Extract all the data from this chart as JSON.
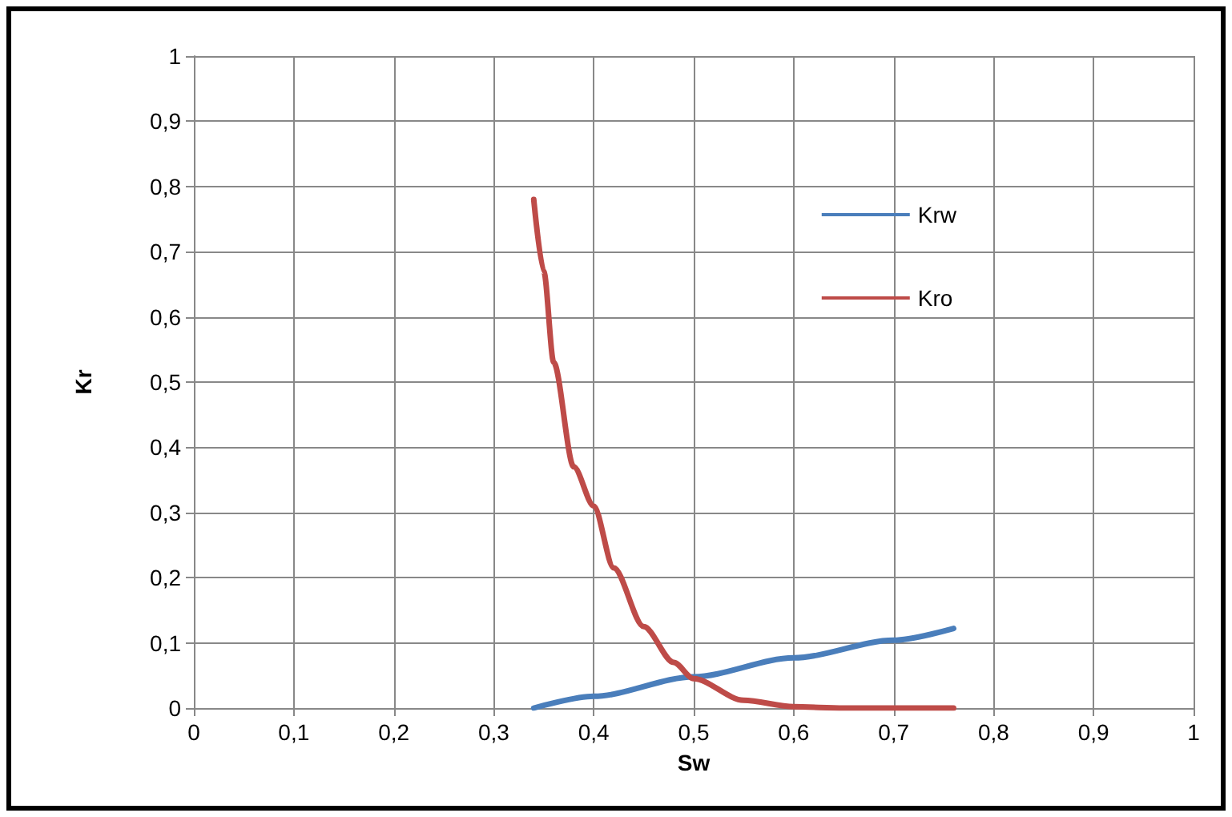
{
  "chart_data": {
    "type": "line",
    "xlabel": "Sw",
    "ylabel": "Kr",
    "series": [
      {
        "name": "Krw",
        "color": "#4a7ebb",
        "x": [
          0.34,
          0.4,
          0.5,
          0.6,
          0.7,
          0.76
        ],
        "values": [
          0,
          0.018,
          0.048,
          0.077,
          0.104,
          0.122
        ]
      },
      {
        "name": "Kro",
        "color": "#be4b48",
        "x": [
          0.34,
          0.35,
          0.36,
          0.38,
          0.4,
          0.42,
          0.45,
          0.48,
          0.5,
          0.55,
          0.6,
          0.65,
          0.7,
          0.76
        ],
        "values": [
          0.78,
          0.67,
          0.53,
          0.37,
          0.31,
          0.215,
          0.125,
          0.07,
          0.045,
          0.012,
          0.002,
          0,
          0,
          0
        ]
      }
    ],
    "xlim": [
      0,
      1
    ],
    "ylim": [
      0,
      1
    ],
    "xticks": [
      0,
      {
        "value": 0.1,
        "label": "0,1"
      },
      {
        "value": 0.2,
        "label": "0,2"
      },
      {
        "value": 0.3,
        "label": "0,3"
      },
      {
        "value": 0.4,
        "label": "0,4"
      },
      {
        "value": 0.5,
        "label": "0,5"
      },
      {
        "value": 0.6,
        "label": "0,6"
      },
      {
        "value": 0.7,
        "label": "0,7"
      },
      {
        "value": 0.8,
        "label": "0,8"
      },
      {
        "value": 0.9,
        "label": "0,9"
      },
      1
    ],
    "yticks": [
      0,
      {
        "value": 0.1,
        "label": "0,1"
      },
      {
        "value": 0.2,
        "label": "0,2"
      },
      {
        "value": 0.3,
        "label": "0,3"
      },
      {
        "value": 0.4,
        "label": "0,4"
      },
      {
        "value": 0.5,
        "label": "0,5"
      },
      {
        "value": 0.6,
        "label": "0,6"
      },
      {
        "value": 0.7,
        "label": "0,7"
      },
      {
        "value": 0.8,
        "label": "0,8"
      },
      {
        "value": 0.9,
        "label": "0,9"
      },
      1
    ],
    "grid": true,
    "legend": "top right",
    "marker": "none",
    "line_style": "solid"
  }
}
